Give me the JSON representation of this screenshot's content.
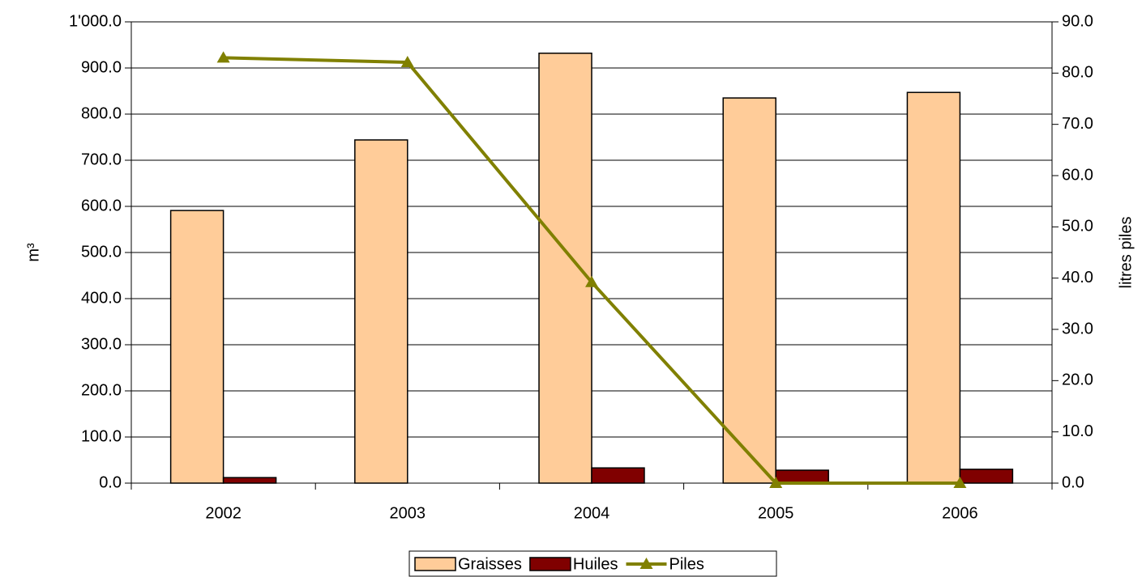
{
  "chart_data": {
    "type": "bar_line",
    "y_label": "m³",
    "y2_label": "litres piles",
    "categories": [
      "2002",
      "2003",
      "2004",
      "2005",
      "2006"
    ],
    "series": [
      {
        "name": "Graisses",
        "type": "bar",
        "color": "#ffcc99",
        "values": [
          591,
          744,
          932,
          835,
          847
        ]
      },
      {
        "name": "Huiles",
        "type": "bar",
        "color": "#800000",
        "values": [
          12,
          0,
          33,
          28,
          30
        ]
      },
      {
        "name": "Piles",
        "type": "line",
        "axis": "y2",
        "color": "#808000",
        "values": [
          83.0,
          82.1,
          39.2,
          0,
          0
        ]
      }
    ],
    "ylim": [
      0,
      1000
    ],
    "yticks": [
      {
        "value": 0,
        "label": "0.0"
      },
      {
        "value": 100,
        "label": "100.0"
      },
      {
        "value": 200,
        "label": "200.0"
      },
      {
        "value": 300,
        "label": "300.0"
      },
      {
        "value": 400,
        "label": "400.0"
      },
      {
        "value": 500,
        "label": "500.0"
      },
      {
        "value": 600,
        "label": "600.0"
      },
      {
        "value": 700,
        "label": "700.0"
      },
      {
        "value": 800,
        "label": "800.0"
      },
      {
        "value": 900,
        "label": "900.0"
      },
      {
        "value": 1000,
        "label": "1'000.0"
      }
    ],
    "y2lim": [
      0,
      90
    ],
    "y2ticks": [
      {
        "value": 0,
        "label": "0.0"
      },
      {
        "value": 10,
        "label": "10.0"
      },
      {
        "value": 20,
        "label": "20.0"
      },
      {
        "value": 30,
        "label": "30.0"
      },
      {
        "value": 40,
        "label": "40.0"
      },
      {
        "value": 50,
        "label": "50.0"
      },
      {
        "value": 60,
        "label": "60.0"
      },
      {
        "value": 70,
        "label": "70.0"
      },
      {
        "value": 80,
        "label": "80.0"
      },
      {
        "value": 90,
        "label": "90.0"
      }
    ],
    "grid": true,
    "legend": "bottom"
  }
}
